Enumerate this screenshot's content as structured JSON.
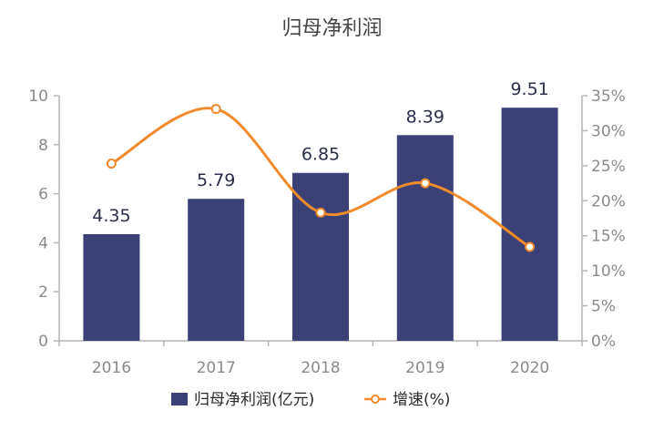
{
  "chart_data": {
    "type": "bar+line",
    "title": "归母净利润",
    "categories": [
      "2016",
      "2017",
      "2018",
      "2019",
      "2020"
    ],
    "series": [
      {
        "name": "归母净利润(亿元)",
        "type": "bar",
        "axis": "left",
        "color": "#3b4177",
        "values": [
          4.35,
          5.79,
          6.85,
          8.39,
          9.51
        ],
        "labels": [
          "4.35",
          "5.79",
          "6.85",
          "8.39",
          "9.51"
        ]
      },
      {
        "name": "增速(%)",
        "type": "line",
        "axis": "right",
        "color": "#f08a2b",
        "values": [
          25.3,
          33.1,
          18.3,
          22.5,
          13.4
        ]
      }
    ],
    "y_left": {
      "ylim": [
        0,
        10
      ],
      "ticks": [
        "0",
        "2",
        "4",
        "6",
        "8",
        "10"
      ]
    },
    "y_right": {
      "ylim": [
        0,
        35
      ],
      "ticks": [
        "0%",
        "5%",
        "10%",
        "15%",
        "20%",
        "25%",
        "30%",
        "35%"
      ]
    },
    "grid": false,
    "legend_position": "bottom"
  }
}
